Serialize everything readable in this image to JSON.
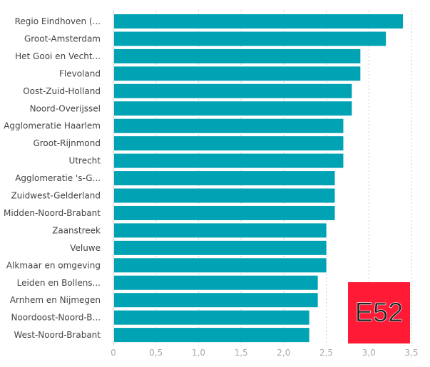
{
  "chart_data": {
    "type": "bar",
    "orientation": "horizontal",
    "categories": [
      "Regio Eindhoven (...",
      "Groot-Amsterdam",
      "Het Gooi en Vecht...",
      "Flevoland",
      "Oost-Zuid-Holland",
      "Noord-Overijssel",
      "Agglomeratie Haarlem",
      "Groot-Rijnmond",
      "Utrecht",
      "Agglomeratie 's-G...",
      "Zuidwest-Gelderland",
      "Midden-Noord-Brabant",
      "Zaanstreek",
      "Veluwe",
      "Alkmaar en omgeving",
      "Leiden en Bollens...",
      "Arnhem en Nijmegen",
      "Noordoost-Noord-B...",
      "West-Noord-Brabant"
    ],
    "values": [
      3.4,
      3.2,
      2.9,
      2.9,
      2.8,
      2.8,
      2.7,
      2.7,
      2.7,
      2.6,
      2.6,
      2.6,
      2.5,
      2.5,
      2.5,
      2.4,
      2.4,
      2.3,
      2.3
    ],
    "xlim": [
      0,
      3.5
    ],
    "xticks": [
      "0",
      "0,5",
      "1,0",
      "1,5",
      "2,0",
      "2,5",
      "3,0",
      "3,5"
    ],
    "grid": true,
    "bar_color": "#00a3b4"
  },
  "logo": {
    "text": "E52",
    "color": "#ff1a35"
  }
}
